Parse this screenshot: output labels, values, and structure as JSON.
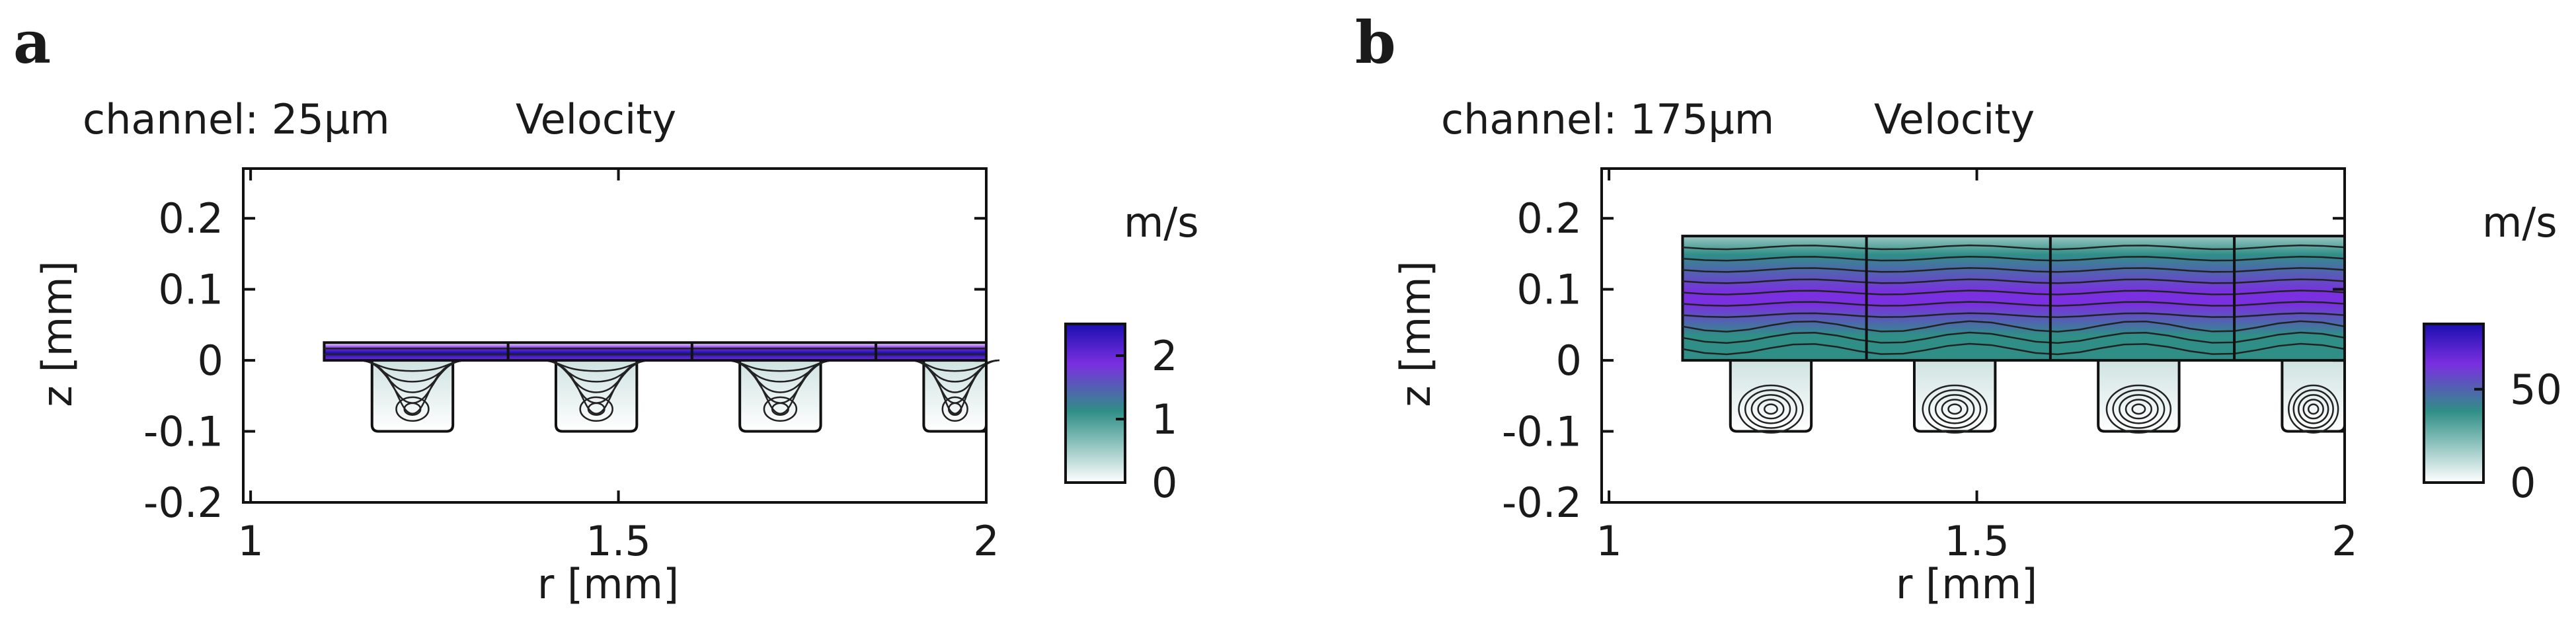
{
  "chart_data": [
    {
      "panel": "a",
      "type": "heatmap",
      "channel_label": "channel: 25µm",
      "title": "Velocity",
      "xlabel": "r [mm]",
      "ylabel": "z [mm]",
      "xlim": [
        0.99,
        2.0
      ],
      "ylim": [
        -0.2,
        0.27
      ],
      "x_ticks": [
        1,
        1.5,
        2
      ],
      "x_tick_labels": [
        "1",
        "1.5",
        "2"
      ],
      "y_ticks": [
        0.2,
        0.1,
        0,
        -0.1,
        -0.2
      ],
      "y_tick_labels": [
        "0.2",
        "0.1",
        "0",
        "-0.1",
        "-0.2"
      ],
      "channel": {
        "r_start": 1.1,
        "r_end": 2.0,
        "z_bottom": 0,
        "z_top": 0.025
      },
      "wells": {
        "z_bottom": -0.1,
        "width": 0.11,
        "r_centers": [
          1.22,
          1.47,
          1.72,
          1.97
        ],
        "dividers_r": [
          1.35,
          1.6,
          1.85
        ]
      },
      "colorbar": {
        "unit": "m/s",
        "min": 0,
        "max": 2.5,
        "ticks": [
          0,
          1,
          2
        ],
        "tick_labels": [
          "0",
          "1",
          "2"
        ],
        "colors": [
          "#ffffff",
          "#2f8f87",
          "#7a2fe0",
          "#1a0fb0"
        ]
      },
      "peak_velocity": 2.5
    },
    {
      "panel": "b",
      "type": "heatmap",
      "channel_label": "channel: 175µm",
      "title": "Velocity",
      "xlabel": "r [mm]",
      "ylabel": "z [mm]",
      "xlim": [
        0.99,
        2.0
      ],
      "ylim": [
        -0.2,
        0.27
      ],
      "x_ticks": [
        1,
        1.5,
        2
      ],
      "x_tick_labels": [
        "1",
        "1.5",
        "2"
      ],
      "y_ticks": [
        0.2,
        0.1,
        0,
        -0.1,
        -0.2
      ],
      "y_tick_labels": [
        "0.2",
        "0.1",
        "0",
        "-0.1",
        "-0.2"
      ],
      "channel": {
        "r_start": 1.1,
        "r_end": 2.0,
        "z_bottom": 0,
        "z_top": 0.175
      },
      "wells": {
        "z_bottom": -0.1,
        "width": 0.11,
        "r_centers": [
          1.22,
          1.47,
          1.72,
          1.97
        ],
        "dividers_r": [
          1.35,
          1.6,
          1.85
        ]
      },
      "colorbar": {
        "unit": "m/s",
        "min": 0,
        "max": 85,
        "ticks": [
          0,
          50
        ],
        "tick_labels": [
          "0",
          "50"
        ],
        "colors": [
          "#ffffff",
          "#2f8f87",
          "#7a2fe0",
          "#1a0fb0"
        ]
      },
      "peak_velocity": 85
    }
  ]
}
